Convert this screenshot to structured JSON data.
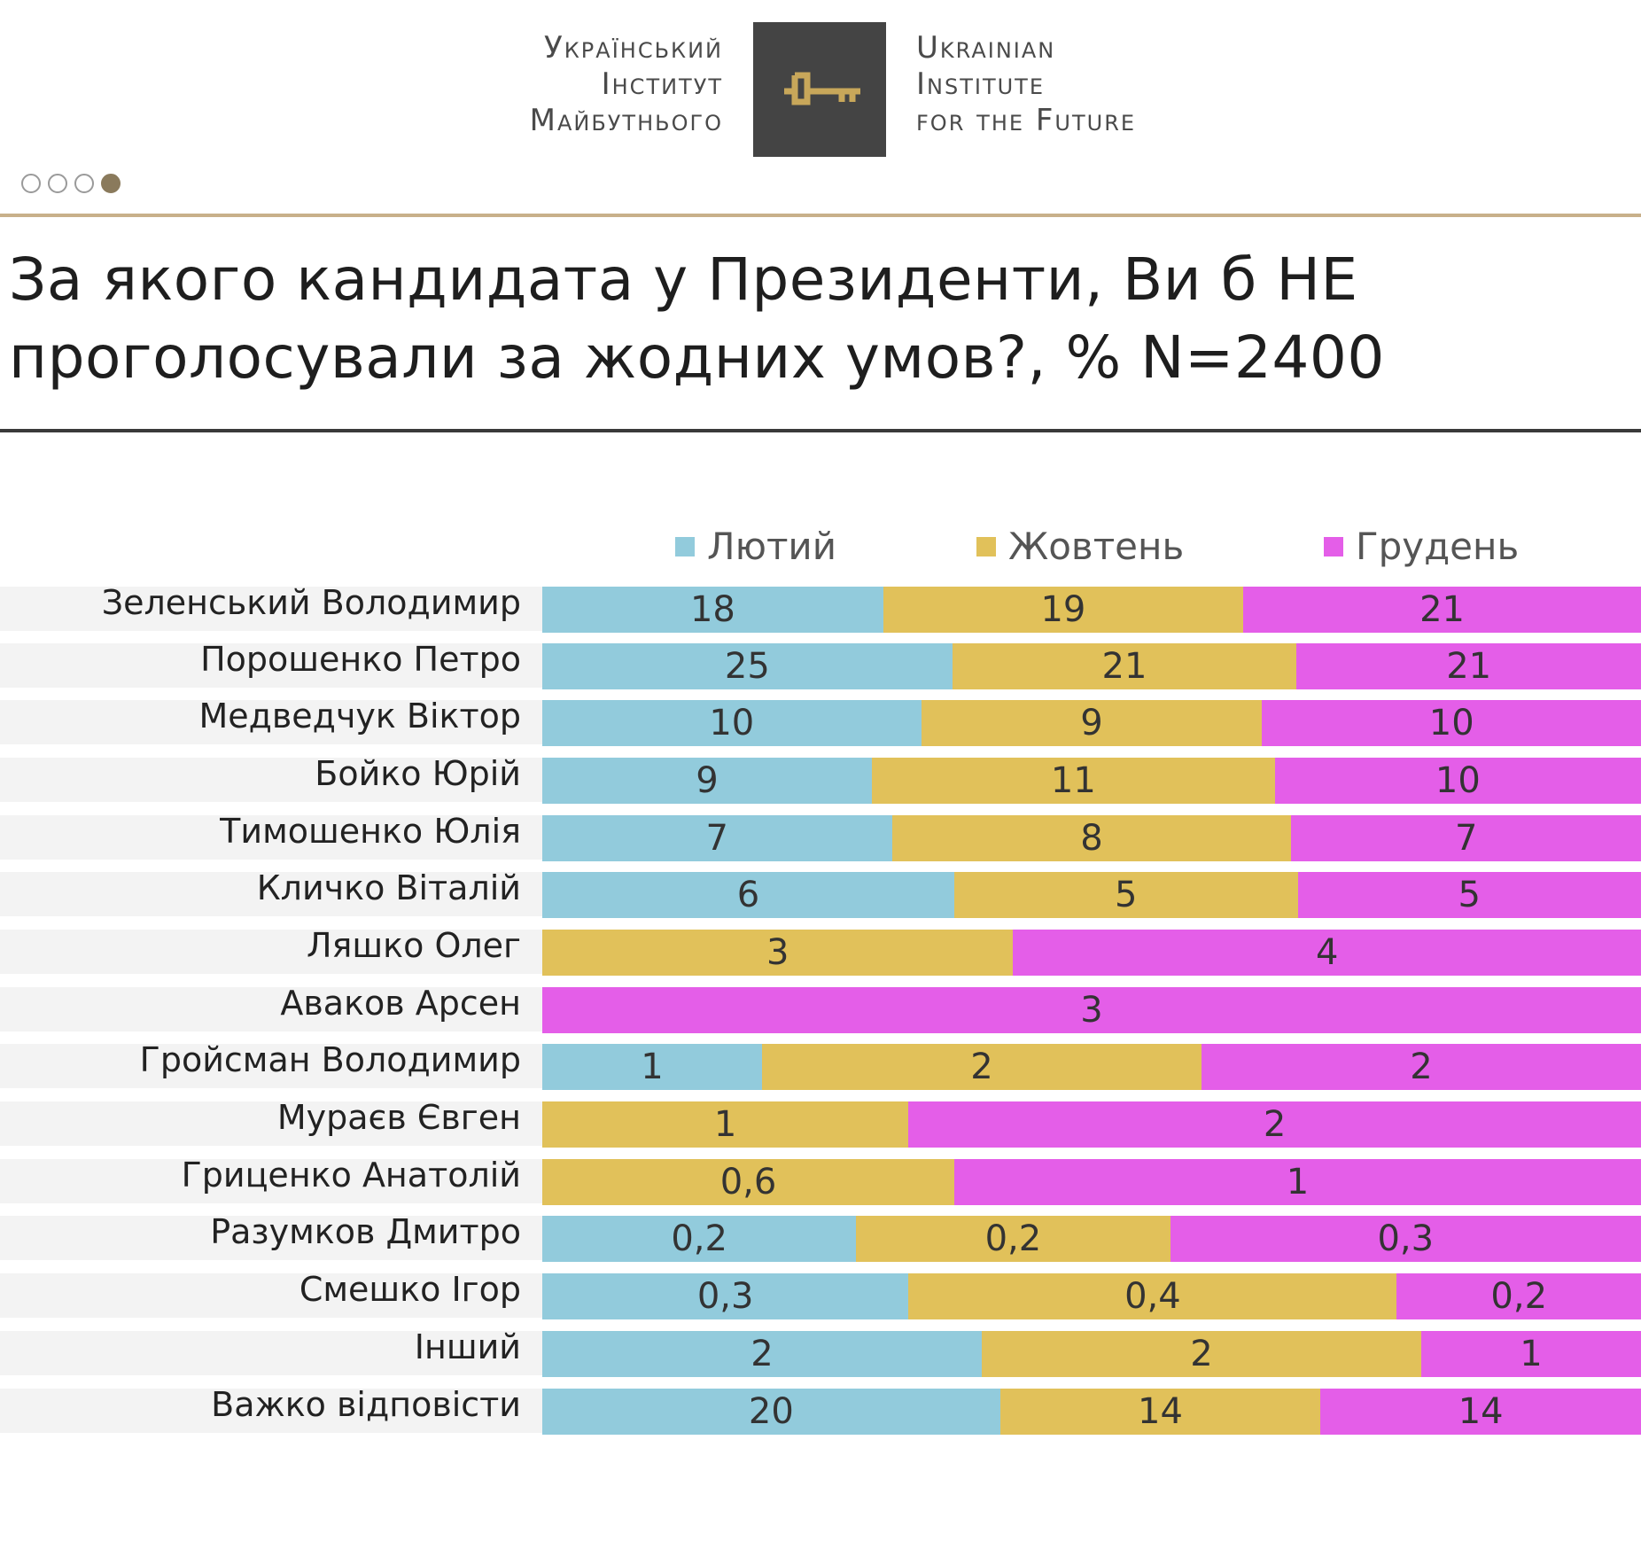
{
  "header": {
    "logo_ua": [
      "Український",
      "Інститут",
      "Майбутнього"
    ],
    "logo_en": [
      "Ukrainian",
      "Institute",
      "for the Future"
    ],
    "key_icon": "key-icon",
    "brand_gold": "#c8a75a",
    "dots": [
      false,
      false,
      false,
      true
    ]
  },
  "title": "За якого кандидата у Президенти, Ви б НЕ\nпроголосували за жодних умов?, % N=2400",
  "chart_data": {
    "type": "bar",
    "orientation": "horizontal",
    "stacked": "100% per row",
    "title": "За якого кандидата у Президенти, Ви б НЕ проголосували за жодних умов?, % N=2400",
    "legend": [
      {
        "name": "Лютий",
        "color": "#92cbdc"
      },
      {
        "name": "Жовтень",
        "color": "#e1c15a"
      },
      {
        "name": "Грудень",
        "color": "#e45ee8"
      }
    ],
    "categories": [
      "Зеленський Володимир",
      "Порошенко Петро",
      "Медведчук Віктор",
      "Бойко Юрій",
      "Тимошенко Юлія",
      "Кличко Віталій",
      "Ляшко Олег",
      "Аваков Арсен",
      "Гройсман Володимир",
      "Мураєв Євген",
      "Гриценко Анатолій",
      "Разумков Дмитро",
      "Смешко Ігор",
      "Інший",
      "Важко відповісти"
    ],
    "series": [
      {
        "name": "Лютий",
        "values": [
          18,
          25,
          10,
          9,
          7,
          6,
          null,
          null,
          1,
          null,
          null,
          0.2,
          0.3,
          2,
          20
        ],
        "labels": [
          "18",
          "25",
          "10",
          "9",
          "7",
          "6",
          null,
          null,
          "1",
          null,
          null,
          "0,2",
          "0,3",
          "2",
          "20"
        ]
      },
      {
        "name": "Жовтень",
        "values": [
          19,
          21,
          9,
          11,
          8,
          5,
          3,
          null,
          2,
          1,
          0.6,
          0.2,
          0.4,
          2,
          14
        ],
        "labels": [
          "19",
          "21",
          "9",
          "11",
          "8",
          "5",
          "3",
          null,
          "2",
          "1",
          "0,6",
          "0,2",
          "0,4",
          "2",
          "14"
        ]
      },
      {
        "name": "Грудень",
        "values": [
          21,
          21,
          10,
          10,
          7,
          5,
          4,
          3,
          2,
          2,
          1,
          0.3,
          0.2,
          1,
          14
        ],
        "labels": [
          "21",
          "21",
          "10",
          "10",
          "7",
          "5",
          "4",
          "3",
          "2",
          "2",
          "1",
          "0,3",
          "0,2",
          "1",
          "14"
        ]
      }
    ]
  }
}
